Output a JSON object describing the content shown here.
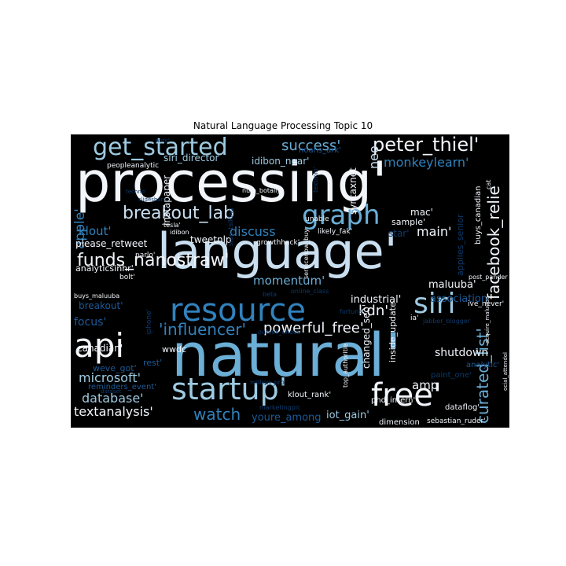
{
  "title": "Natural Language Processing Topic 10",
  "palette": {
    "background": "#000000",
    "white": "#f2f6fb",
    "pale": "#c9dff0",
    "light": "#9ecae1",
    "mid": "#6baed6",
    "blue": "#3182bd",
    "dark": "#1c5a97",
    "deep": "#0d3a6b"
  },
  "words": [
    {
      "text": "processing'",
      "c": "white"
    },
    {
      "text": "language'",
      "c": "pale"
    },
    {
      "text": "natural'",
      "c": "mid"
    },
    {
      "text": "resource",
      "c": "blue"
    },
    {
      "text": "startup'",
      "c": "light"
    },
    {
      "text": "free'",
      "c": "white"
    },
    {
      "text": "api",
      "c": "white"
    },
    {
      "text": "get_started",
      "c": "light"
    },
    {
      "text": "graph",
      "c": "mid"
    },
    {
      "text": "siri",
      "c": "light"
    },
    {
      "text": "peter_thiel'",
      "c": "white"
    },
    {
      "text": "breakout_lab",
      "c": "pale"
    },
    {
      "text": "funds_nanostraw'",
      "c": "white"
    },
    {
      "text": "'influencer'",
      "c": "blue"
    },
    {
      "text": "curated_list'",
      "c": "mid"
    },
    {
      "text": "facebook_relie",
      "c": "white"
    },
    {
      "text": "powerful_free'",
      "c": "white"
    },
    {
      "text": "watch",
      "c": "blue"
    },
    {
      "text": "textanalysis'",
      "c": "white"
    },
    {
      "text": "microsoft'",
      "c": "light"
    },
    {
      "text": "database'",
      "c": "light"
    },
    {
      "text": "success'",
      "c": "mid"
    },
    {
      "text": "monkeylearn'",
      "c": "blue"
    },
    {
      "text": "apple'",
      "c": "blue"
    },
    {
      "text": "klout'",
      "c": "blue"
    },
    {
      "text": "discuss",
      "c": "blue"
    },
    {
      "text": "momentum'",
      "c": "mid"
    },
    {
      "text": "kdn'",
      "c": "white"
    },
    {
      "text": "main'",
      "c": "white"
    },
    {
      "text": "neo",
      "c": "pale"
    },
    {
      "text": "amp",
      "c": "white"
    },
    {
      "text": "shutdown",
      "c": "white"
    },
    {
      "text": "maluuba'",
      "c": "white"
    },
    {
      "text": "association",
      "c": "dark"
    },
    {
      "text": "industrial'",
      "c": "white"
    },
    {
      "text": "focus'",
      "c": "dark"
    },
    {
      "text": "youre_among",
      "c": "dark"
    },
    {
      "text": "iot_gain'",
      "c": "light"
    },
    {
      "text": "canadian'",
      "c": "white"
    },
    {
      "text": "siri_director",
      "c": "light"
    },
    {
      "text": "idibon_near'",
      "c": "light"
    },
    {
      "text": "noahs_ark'",
      "c": "dark"
    },
    {
      "text": "please_retweet",
      "c": "white"
    },
    {
      "text": "analyticsinhr'",
      "c": "white"
    },
    {
      "text": "tweetnlp",
      "c": "white"
    },
    {
      "text": "breakout'",
      "c": "dark"
    },
    {
      "text": "weve_got'",
      "c": "dark"
    },
    {
      "text": "reminders_event'",
      "c": "dark"
    },
    {
      "text": "rest'",
      "c": "dark"
    },
    {
      "text": "wwdc",
      "c": "white"
    },
    {
      "text": "instapaper",
      "c": "white"
    },
    {
      "text": "syntaxnet",
      "c": "white"
    },
    {
      "text": "mac'",
      "c": "white"
    },
    {
      "text": "sample'",
      "c": "white"
    },
    {
      "text": "star'",
      "c": "deep"
    },
    {
      "text": "changed_seo'",
      "c": "white"
    },
    {
      "text": "inside_update",
      "c": "white"
    },
    {
      "text": "phd_intern'",
      "c": "white"
    },
    {
      "text": "klout_rank'",
      "c": "white"
    },
    {
      "text": "dimension",
      "c": "white"
    },
    {
      "text": "dataflog'",
      "c": "white"
    },
    {
      "text": "analytic'",
      "c": "dark"
    },
    {
      "text": "paint_one'",
      "c": "deep"
    },
    {
      "text": "sebastian_ruder'",
      "c": "white"
    },
    {
      "text": "ive_never'",
      "c": "white"
    },
    {
      "text": "buys_canadian",
      "c": "white"
    },
    {
      "text": "applies_senior",
      "c": "deep"
    },
    {
      "text": "growthhack'",
      "c": "white"
    },
    {
      "text": "likely_fak'",
      "c": "white"
    },
    {
      "text": "unable",
      "c": "white"
    },
    {
      "text": "peopleanalytic",
      "c": "white"
    },
    {
      "text": "nuts'",
      "c": "deep"
    },
    {
      "text": "techno'",
      "c": "deep"
    },
    {
      "text": "slideshare",
      "c": "deep"
    },
    {
      "text": "num_botally'",
      "c": "white"
    },
    {
      "text": "stop_talking",
      "c": "deep"
    },
    {
      "text": "textmin'",
      "c": "deep"
    },
    {
      "text": "idibon",
      "c": "white"
    },
    {
      "text": "parlo'",
      "c": "white"
    },
    {
      "text": "bolt'",
      "c": "white"
    },
    {
      "text": "buys_maluuba",
      "c": "white"
    },
    {
      "text": "iphone'",
      "c": "deep"
    },
    {
      "text": "online_class",
      "c": "deep"
    },
    {
      "text": "outsell_choos",
      "c": "deep"
    },
    {
      "text": "million_pro",
      "c": "deep"
    },
    {
      "text": "marketingpic",
      "c": "deep"
    },
    {
      "text": "top_authoritie",
      "c": "white"
    },
    {
      "text": "servicenow_buy",
      "c": "white"
    },
    {
      "text": "jabber_blogger",
      "c": "deep"
    },
    {
      "text": "acquire_maluuba",
      "c": "white"
    },
    {
      "text": "cat",
      "c": "white"
    },
    {
      "text": "ia'",
      "c": "white"
    },
    {
      "text": "tesla'",
      "c": "white"
    },
    {
      "text": "fortune",
      "c": "deep"
    },
    {
      "text": "beta",
      "c": "deep"
    },
    {
      "text": "dataset",
      "c": "deep"
    },
    {
      "text": "ocial_attendol",
      "c": "white"
    },
    {
      "text": "post_pander",
      "c": "white"
    }
  ]
}
